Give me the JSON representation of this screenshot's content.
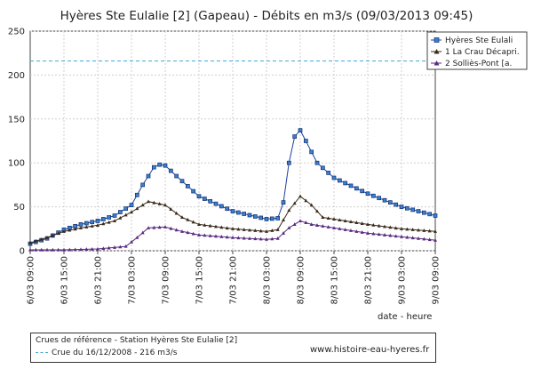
{
  "chart_data": {
    "type": "line",
    "title": "Hyères Ste Eulalie [2] (Gapeau) - Débits en m3/s (09/03/2013 09:45)",
    "xlabel": "date - heure",
    "ylim": [
      0,
      250
    ],
    "yticks": [
      0,
      50,
      100,
      150,
      200,
      250
    ],
    "xrange": [
      "06/03 09:00",
      "09/03 09:00"
    ],
    "xticks": [
      "6/03 09:00",
      "6/03 15:00",
      "6/03 21:00",
      "7/03 03:00",
      "7/03 09:00",
      "7/03 15:00",
      "7/03 21:00",
      "8/03 03:00",
      "8/03 09:00",
      "8/03 15:00",
      "8/03 21:00",
      "9/03 03:00",
      "9/03 09:00"
    ],
    "grid": true,
    "legend_position": "top-right",
    "reference_line": {
      "value": 216,
      "label": "Crue du 16/12/2008 - 216 m3/s",
      "color": "#3fa9d2"
    },
    "series": [
      {
        "name": "Hyères Ste Eulali",
        "color": "#1f3fa0",
        "marker": "square",
        "points": [
          [
            "06/03 09:00",
            8
          ],
          [
            "06/03 12:00",
            14
          ],
          [
            "06/03 15:00",
            24
          ],
          [
            "06/03 18:00",
            30
          ],
          [
            "06/03 21:00",
            34
          ],
          [
            "07/03 00:00",
            40
          ],
          [
            "07/03 03:00",
            52
          ],
          [
            "07/03 05:00",
            75
          ],
          [
            "07/03 07:00",
            95
          ],
          [
            "07/03 08:00",
            98
          ],
          [
            "07/03 09:00",
            97
          ],
          [
            "07/03 11:00",
            85
          ],
          [
            "07/03 15:00",
            62
          ],
          [
            "07/03 21:00",
            45
          ],
          [
            "08/03 03:00",
            36
          ],
          [
            "08/03 05:00",
            37
          ],
          [
            "08/03 06:00",
            55
          ],
          [
            "08/03 07:00",
            100
          ],
          [
            "08/03 08:00",
            130
          ],
          [
            "08/03 09:00",
            137
          ],
          [
            "08/03 10:00",
            125
          ],
          [
            "08/03 12:00",
            100
          ],
          [
            "08/03 15:00",
            83
          ],
          [
            "08/03 21:00",
            65
          ],
          [
            "09/03 03:00",
            50
          ],
          [
            "09/03 09:00",
            40
          ]
        ]
      },
      {
        "name": "1 La Crau Décapri.",
        "color": "#3a2a1a",
        "marker": "triangle",
        "points": [
          [
            "06/03 09:00",
            9
          ],
          [
            "06/03 12:00",
            15
          ],
          [
            "06/03 15:00",
            22
          ],
          [
            "06/03 18:00",
            26
          ],
          [
            "06/03 21:00",
            29
          ],
          [
            "07/03 00:00",
            34
          ],
          [
            "07/03 03:00",
            44
          ],
          [
            "07/03 06:00",
            56
          ],
          [
            "07/03 09:00",
            52
          ],
          [
            "07/03 12:00",
            38
          ],
          [
            "07/03 15:00",
            30
          ],
          [
            "07/03 21:00",
            25
          ],
          [
            "08/03 03:00",
            22
          ],
          [
            "08/03 05:00",
            24
          ],
          [
            "08/03 07:00",
            46
          ],
          [
            "08/03 09:00",
            62
          ],
          [
            "08/03 11:00",
            52
          ],
          [
            "08/03 13:00",
            38
          ],
          [
            "08/03 15:00",
            36
          ],
          [
            "08/03 21:00",
            30
          ],
          [
            "09/03 03:00",
            25
          ],
          [
            "09/03 09:00",
            22
          ]
        ]
      },
      {
        "name": "2 Solliès-Pont [a.",
        "color": "#5a2a80",
        "marker": "triangle",
        "points": [
          [
            "06/03 09:00",
            1
          ],
          [
            "06/03 15:00",
            1
          ],
          [
            "06/03 21:00",
            2
          ],
          [
            "07/03 02:00",
            5
          ],
          [
            "07/03 04:00",
            15
          ],
          [
            "07/03 06:00",
            26
          ],
          [
            "07/03 09:00",
            27
          ],
          [
            "07/03 12:00",
            22
          ],
          [
            "07/03 15:00",
            18
          ],
          [
            "07/03 21:00",
            15
          ],
          [
            "08/03 03:00",
            13
          ],
          [
            "08/03 05:00",
            14
          ],
          [
            "08/03 07:00",
            26
          ],
          [
            "08/03 09:00",
            34
          ],
          [
            "08/03 11:00",
            30
          ],
          [
            "08/03 15:00",
            26
          ],
          [
            "08/03 21:00",
            20
          ],
          [
            "09/03 03:00",
            16
          ],
          [
            "09/03 09:00",
            12
          ]
        ]
      }
    ]
  },
  "reference": {
    "title": "Crues de référence - Station Hyères Ste Eulalie [2]",
    "item": "Crue du 16/12/2008 - 216 m3/s"
  },
  "website": "www.histoire-eau-hyeres.fr"
}
